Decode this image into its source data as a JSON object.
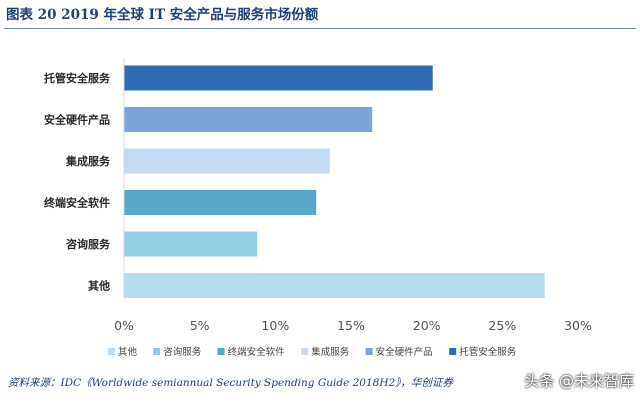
{
  "header": {
    "figure_title": "图表 20    2019 年全球 IT 安全产品与服务市场份额"
  },
  "footer": {
    "source": "资料来源：IDC《Worldwide semiannual Security Spending Guide 2018H2》，华创证券",
    "watermark": "头条 @未来智库"
  },
  "chart_data": {
    "type": "bar",
    "orientation": "horizontal",
    "title": "",
    "xlabel": "",
    "ylabel": "",
    "categories": [
      "托管安全服务",
      "安全硬件产品",
      "集成服务",
      "终端安全软件",
      "咨询服务",
      "其他"
    ],
    "values": [
      0.204,
      0.164,
      0.136,
      0.127,
      0.088,
      0.278
    ],
    "colors": [
      "#2e6bb0",
      "#7aa5dc",
      "#c5daf3",
      "#5aa8c8",
      "#8fcde0",
      "#b6dcef"
    ],
    "xlim": [
      0,
      0.3
    ],
    "x_ticks": [
      "0%",
      "5%",
      "10%",
      "15%",
      "20%",
      "25%",
      "30%"
    ],
    "x_tick_values": [
      0,
      0.05,
      0.1,
      0.15,
      0.2,
      0.25,
      0.3
    ],
    "grid": false,
    "legend": {
      "placement": "bottom",
      "entries": [
        {
          "label": "其他",
          "color": "#b6dcef"
        },
        {
          "label": "咨询服务",
          "color": "#8fcde0"
        },
        {
          "label": "终端安全软件",
          "color": "#5aa8c8"
        },
        {
          "label": "集成服务",
          "color": "#c5daf3"
        },
        {
          "label": "安全硬件产品",
          "color": "#7aa5dc"
        },
        {
          "label": "托管安全服务",
          "color": "#2e6bb0"
        }
      ]
    }
  }
}
